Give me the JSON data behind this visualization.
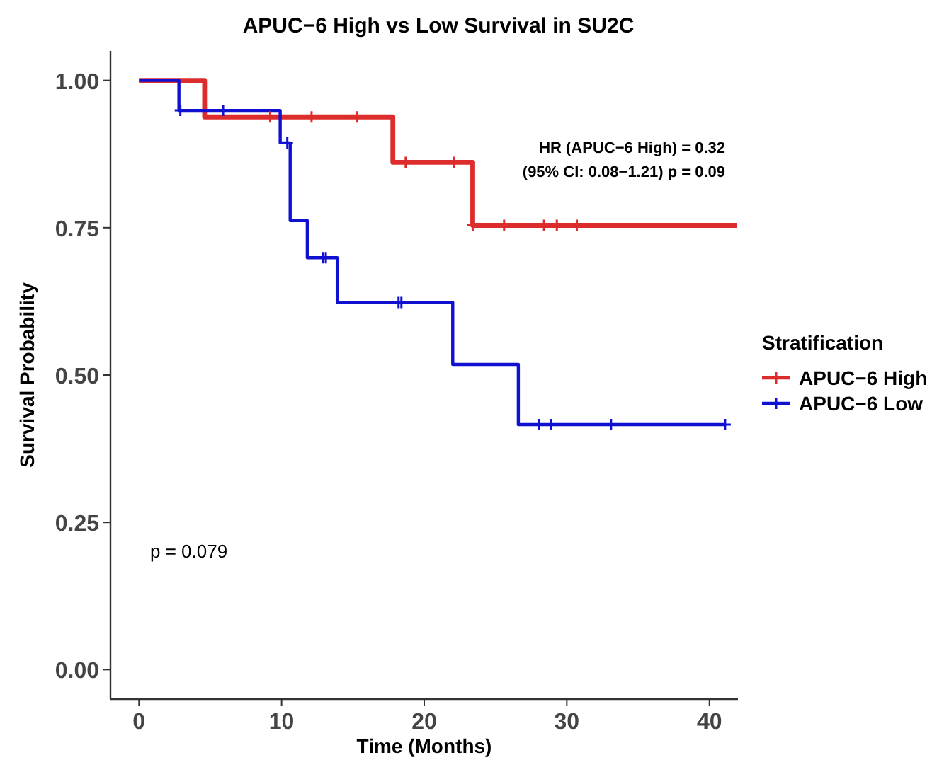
{
  "chart_data": {
    "type": "step",
    "title": "APUC−6 High vs Low Survival in SU2C",
    "xlabel": "Time (Months)",
    "ylabel": "Survival Probability",
    "legend_title": "Stratification",
    "legend": "right",
    "grid": false,
    "line_style": "solid",
    "xlim": [
      -2,
      42
    ],
    "ylim": [
      -0.05,
      1.05
    ],
    "xticks": [
      0,
      10,
      20,
      30,
      40
    ],
    "yticks": [
      {
        "value": 0,
        "label": "0.00"
      },
      {
        "value": 0.25,
        "label": "0.25"
      },
      {
        "value": 0.5,
        "label": "0.50"
      },
      {
        "value": 0.75,
        "label": "0.75"
      },
      {
        "value": 1,
        "label": "1.00"
      }
    ],
    "annotations": [
      "HR (APUC−6 High) = 0.32",
      "(95% CI: 0.08−1.21) p = 0.09",
      "p = 0.079"
    ],
    "series": [
      {
        "name": "APUC−6 High",
        "color": "#dd2c2c",
        "x": [
          0,
          4.6,
          17.8,
          23.4,
          41.9
        ],
        "values": [
          1,
          0.938,
          0.861,
          0.754,
          0.754
        ]
      },
      {
        "name": "APUC−6 Low",
        "color": "#1010d0",
        "x": [
          0,
          2.8,
          9.9,
          10.6,
          11.8,
          13.9,
          22,
          26.6,
          41.1
        ],
        "values": [
          1,
          0.949,
          0.894,
          0.762,
          0.699,
          0.623,
          0.518,
          0.416,
          0.416
        ]
      },
      {
        "type": "scatter",
        "marker": "cross",
        "color": "#dd2c2c",
        "x": [
          9.2,
          12.1,
          15.3,
          18.7,
          22.1,
          23.4,
          25.6,
          28.4,
          29.3,
          30.7
        ],
        "values": [
          0.938,
          0.938,
          0.938,
          0.861,
          0.861,
          0.754,
          0.754,
          0.754,
          0.754,
          0.754
        ]
      },
      {
        "type": "scatter",
        "marker": "cross",
        "color": "#1010d0",
        "x": [
          2.9,
          5.9,
          10.4,
          12.9,
          13.1,
          18.2,
          18.4,
          28.05,
          28.9,
          33.1,
          41.1
        ],
        "values": [
          0.949,
          0.949,
          0.894,
          0.699,
          0.699,
          0.623,
          0.623,
          0.416,
          0.416,
          0.416,
          0.416
        ]
      }
    ]
  }
}
